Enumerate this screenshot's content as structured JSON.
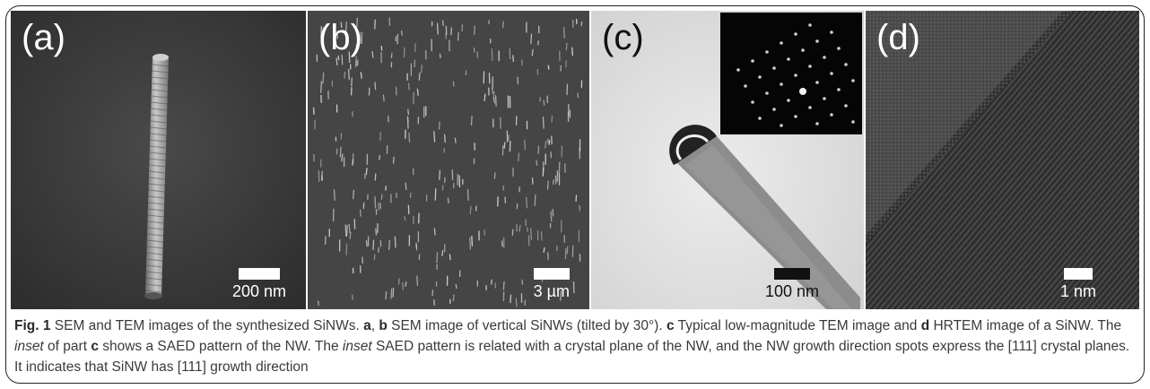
{
  "figure": {
    "panels": [
      {
        "label": "(a)",
        "scale_bar": "200 nm",
        "type": "SEM"
      },
      {
        "label": "(b)",
        "scale_bar": "3 µm",
        "type": "SEM"
      },
      {
        "label": "(c)",
        "scale_bar": "100 nm",
        "type": "TEM"
      },
      {
        "label": "(d)",
        "scale_bar": "1 nm",
        "type": "HRTEM"
      }
    ],
    "caption": {
      "fig_label": "Fig. 1",
      "t1": " SEM and TEM images of the synthesized SiNWs. ",
      "ref_a": "a",
      "t2": ", ",
      "ref_b": "b",
      "t3": " SEM image of vertical SiNWs (tilted by 30°). ",
      "ref_c": "c",
      "t4": " Typical low-magnitude TEM image and ",
      "ref_d": "d",
      "t5": " HRTEM image of a SiNW. The ",
      "inset1": "inset",
      "t6": " of part ",
      "ref_c2": "c",
      "t7": " shows a SAED pattern of the NW. The ",
      "inset2": "inset",
      "t8": " SAED pattern is related with a crystal plane of the NW, and the NW growth direction spots express the [111] crystal planes. It indicates that SiNW has [111] growth direction"
    }
  }
}
